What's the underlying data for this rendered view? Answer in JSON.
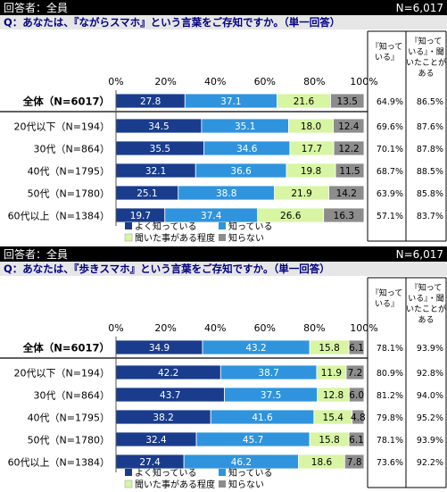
{
  "colors": {
    "header_bg": "#000000",
    "header_text": "#ffffff",
    "question_bg": "#e6e6e6",
    "question_text": "#000080",
    "series": [
      "#1a3c8c",
      "#2f94dd",
      "#d7f5a2",
      "#8c8c8c"
    ],
    "series_text": [
      "#ffffff",
      "#ffffff",
      "#000000",
      "#000000"
    ]
  },
  "chart_data": [
    {
      "type": "bar",
      "stacked": true,
      "orientation": "horizontal",
      "header_left": "回答者：全員",
      "header_right": "N=6,017",
      "question": "Q：あなたは、『ながらスマホ』という言葉をご存知ですか。（単一回答）",
      "categories": [
        "全体（N=6017）",
        "20代以下（N=194）",
        "30代（N=864）",
        "40代（N=1795）",
        "50代（N=1780）",
        "60代以上（N=1384）"
      ],
      "series": [
        {
          "name": "よく知っている",
          "values": [
            27.8,
            34.5,
            35.5,
            32.1,
            25.1,
            19.7
          ]
        },
        {
          "name": "知っている",
          "values": [
            37.1,
            35.1,
            34.6,
            36.6,
            38.8,
            37.4
          ]
        },
        {
          "name": "聞いた事がある程度",
          "values": [
            21.6,
            18.0,
            17.7,
            19.8,
            21.9,
            26.6
          ]
        },
        {
          "name": "知らない",
          "values": [
            13.5,
            12.4,
            12.2,
            11.5,
            14.2,
            16.3
          ]
        }
      ],
      "x_ticks": [
        "0%",
        "20%",
        "40%",
        "60%",
        "80%",
        "100%"
      ],
      "xlim": [
        0,
        100
      ],
      "extra_columns": [
        {
          "header_lines": [
            "『知って",
            "いる』"
          ],
          "values": [
            "64.9%",
            "69.6%",
            "70.1%",
            "68.7%",
            "63.9%",
            "57.1%"
          ]
        },
        {
          "header_lines": [
            "『知って",
            "いる』・聞",
            "いたことが",
            "ある"
          ],
          "values": [
            "86.5%",
            "87.6%",
            "87.8%",
            "88.5%",
            "85.8%",
            "83.7%"
          ]
        }
      ]
    },
    {
      "type": "bar",
      "stacked": true,
      "orientation": "horizontal",
      "header_left": "回答者：全員",
      "header_right": "N=6,017",
      "question": "Q：あなたは、『歩きスマホ』という言葉をご存知ですか。（単一回答）",
      "categories": [
        "全体（N=6017）",
        "20代以下（N=194）",
        "30代（N=864）",
        "40代（N=1795）",
        "50代（N=1780）",
        "60代以上（N=1384）"
      ],
      "series": [
        {
          "name": "よく知っている",
          "values": [
            34.9,
            42.2,
            43.7,
            38.2,
            32.4,
            27.4
          ]
        },
        {
          "name": "知っている",
          "values": [
            43.2,
            38.7,
            37.5,
            41.6,
            45.7,
            46.2
          ]
        },
        {
          "name": "聞いた事がある程度",
          "values": [
            15.8,
            11.9,
            12.8,
            15.4,
            15.8,
            18.6
          ]
        },
        {
          "name": "知らない",
          "values": [
            6.1,
            7.2,
            6.0,
            4.8,
            6.1,
            7.8
          ]
        }
      ],
      "x_ticks": [
        "0%",
        "20%",
        "40%",
        "60%",
        "80%",
        "100%"
      ],
      "xlim": [
        0,
        100
      ],
      "extra_columns": [
        {
          "header_lines": [
            "『知って",
            "いる』"
          ],
          "values": [
            "78.1%",
            "80.9%",
            "81.2%",
            "79.8%",
            "78.1%",
            "73.6%"
          ]
        },
        {
          "header_lines": [
            "『知って",
            "いる』・聞",
            "いたことが",
            "ある"
          ],
          "values": [
            "93.9%",
            "92.8%",
            "94.0%",
            "95.2%",
            "93.9%",
            "92.2%"
          ]
        }
      ]
    }
  ]
}
